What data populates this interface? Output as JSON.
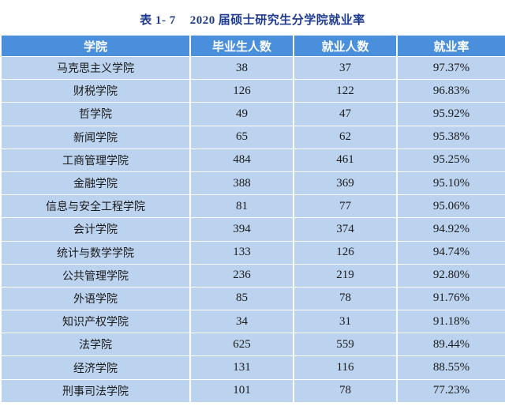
{
  "title": {
    "label": "表 1- 7",
    "year": "2020",
    "text": "届硕士研究生分学院就业率"
  },
  "columns": [
    "学院",
    "毕业生人数",
    "就业人数",
    "就业率"
  ],
  "rows": [
    {
      "school": "马克思主义学院",
      "graduates": "38",
      "employed": "37",
      "rate": "97.37%"
    },
    {
      "school": "财税学院",
      "graduates": "126",
      "employed": "122",
      "rate": "96.83%"
    },
    {
      "school": "哲学院",
      "graduates": "49",
      "employed": "47",
      "rate": "95.92%"
    },
    {
      "school": "新闻学院",
      "graduates": "65",
      "employed": "62",
      "rate": "95.38%"
    },
    {
      "school": "工商管理学院",
      "graduates": "484",
      "employed": "461",
      "rate": "95.25%"
    },
    {
      "school": "金融学院",
      "graduates": "388",
      "employed": "369",
      "rate": "95.10%"
    },
    {
      "school": "信息与安全工程学院",
      "graduates": "81",
      "employed": "77",
      "rate": "95.06%"
    },
    {
      "school": "会计学院",
      "graduates": "394",
      "employed": "374",
      "rate": "94.92%"
    },
    {
      "school": "统计与数学学院",
      "graduates": "133",
      "employed": "126",
      "rate": "94.74%"
    },
    {
      "school": "公共管理学院",
      "graduates": "236",
      "employed": "219",
      "rate": "92.80%"
    },
    {
      "school": "外语学院",
      "graduates": "85",
      "employed": "78",
      "rate": "91.76%"
    },
    {
      "school": "知识产权学院",
      "graduates": "34",
      "employed": "31",
      "rate": "91.18%"
    },
    {
      "school": "法学院",
      "graduates": "625",
      "employed": "559",
      "rate": "89.44%"
    },
    {
      "school": "经济学院",
      "graduates": "131",
      "employed": "116",
      "rate": "88.55%"
    },
    {
      "school": "刑事司法学院",
      "graduates": "101",
      "employed": "78",
      "rate": "77.23%"
    }
  ]
}
